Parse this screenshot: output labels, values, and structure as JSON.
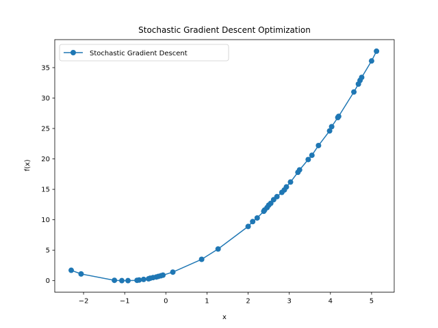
{
  "chart_data": {
    "type": "line",
    "title": "Stochastic Gradient Descent Optimization",
    "xlabel": "x",
    "ylabel": "f(x)",
    "xlim": [
      -2.7,
      5.55
    ],
    "ylim": [
      -1.9,
      39.6
    ],
    "xticks": [
      -2,
      -1,
      0,
      1,
      2,
      3,
      4,
      5
    ],
    "yticks": [
      0,
      5,
      10,
      15,
      20,
      25,
      30,
      35
    ],
    "grid": false,
    "legend_position": "upper-left",
    "series": [
      {
        "name": "Stochastic Gradient Descent",
        "color": "#1f77b4",
        "marker": "circle",
        "x": [
          5.12,
          5.0,
          4.76,
          4.72,
          4.68,
          4.57,
          4.2,
          4.18,
          4.03,
          3.98,
          3.71,
          3.55,
          3.46,
          3.25,
          3.21,
          3.03,
          2.93,
          2.88,
          2.82,
          2.7,
          2.62,
          2.55,
          2.5,
          2.46,
          2.4,
          2.38,
          2.22,
          2.11,
          2.0,
          1.27,
          0.87,
          0.17,
          -0.07,
          -0.12,
          -0.18,
          -0.23,
          -0.31,
          -0.38,
          -0.42,
          -0.54,
          -0.65,
          -0.7,
          -0.92,
          -1.07,
          -1.25,
          -2.06,
          -2.3
        ],
        "y": [
          37.7,
          36.1,
          33.4,
          32.9,
          32.3,
          31.0,
          27.0,
          26.8,
          25.3,
          24.6,
          22.2,
          20.6,
          19.9,
          18.2,
          17.8,
          16.2,
          15.4,
          14.9,
          14.5,
          13.8,
          13.3,
          12.7,
          12.4,
          12.0,
          11.6,
          11.4,
          10.3,
          9.7,
          8.9,
          5.2,
          3.5,
          1.4,
          0.9,
          0.8,
          0.7,
          0.6,
          0.5,
          0.4,
          0.3,
          0.2,
          0.1,
          0.05,
          0.0,
          0.0,
          0.05,
          1.1,
          1.7
        ]
      }
    ]
  }
}
